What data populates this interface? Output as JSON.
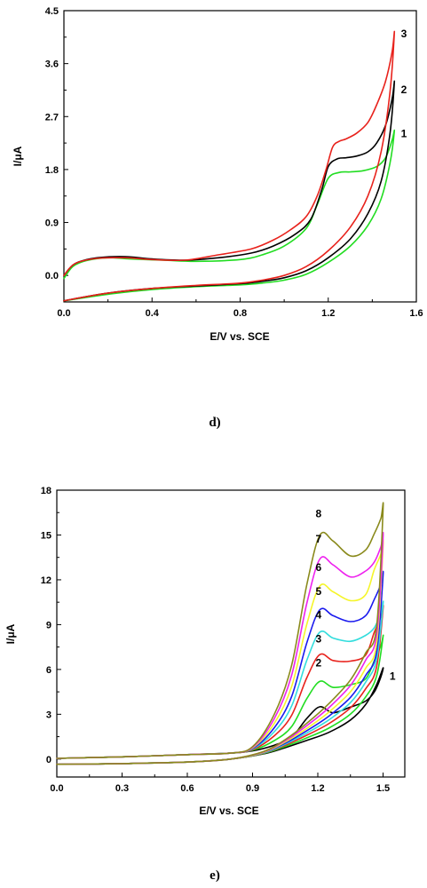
{
  "chart_data": [
    {
      "panel": "d)",
      "type": "line",
      "xlabel": "E/V vs. SCE",
      "ylabel": "I/μA",
      "xlim": [
        0.0,
        1.6
      ],
      "ylim": [
        -0.45,
        4.5
      ],
      "xticks": [
        "0.0",
        "0.4",
        "0.8",
        "1.2",
        "1.6"
      ],
      "yticks": [
        "0.0",
        "0.9",
        "1.8",
        "2.7",
        "3.6",
        "4.5"
      ],
      "grid": false,
      "series": [
        {
          "name": "1",
          "color": "#22dd22",
          "label_at": [
            1.53,
            2.35
          ],
          "forward": [
            [
              0.0,
              -0.43
            ],
            [
              0.2,
              -0.32
            ],
            [
              0.4,
              -0.24
            ],
            [
              0.6,
              -0.19
            ],
            [
              0.8,
              -0.16
            ],
            [
              0.9,
              -0.13
            ],
            [
              1.0,
              -0.08
            ],
            [
              1.1,
              0.02
            ],
            [
              1.2,
              0.22
            ],
            [
              1.3,
              0.5
            ],
            [
              1.38,
              0.85
            ],
            [
              1.44,
              1.3
            ],
            [
              1.48,
              1.9
            ],
            [
              1.5,
              2.45
            ]
          ],
          "reverse": [
            [
              1.5,
              2.45
            ],
            [
              1.49,
              2.3
            ],
            [
              1.46,
              2.0
            ],
            [
              1.42,
              1.85
            ],
            [
              1.36,
              1.78
            ],
            [
              1.3,
              1.76
            ],
            [
              1.25,
              1.75
            ],
            [
              1.2,
              1.65
            ],
            [
              1.15,
              1.2
            ],
            [
              1.1,
              0.8
            ],
            [
              1.0,
              0.5
            ],
            [
              0.9,
              0.35
            ],
            [
              0.8,
              0.27
            ],
            [
              0.6,
              0.24
            ],
            [
              0.45,
              0.26
            ],
            [
              0.3,
              0.28
            ],
            [
              0.2,
              0.3
            ],
            [
              0.1,
              0.25
            ],
            [
              0.04,
              0.15
            ],
            [
              0.0,
              -0.05
            ]
          ]
        },
        {
          "name": "2",
          "color": "#000000",
          "label_at": [
            1.53,
            3.1
          ],
          "forward": [
            [
              0.0,
              -0.43
            ],
            [
              0.2,
              -0.3
            ],
            [
              0.4,
              -0.22
            ],
            [
              0.6,
              -0.18
            ],
            [
              0.8,
              -0.14
            ],
            [
              0.9,
              -0.1
            ],
            [
              1.0,
              -0.04
            ],
            [
              1.1,
              0.08
            ],
            [
              1.2,
              0.3
            ],
            [
              1.3,
              0.62
            ],
            [
              1.38,
              1.05
            ],
            [
              1.44,
              1.6
            ],
            [
              1.48,
              2.4
            ],
            [
              1.5,
              3.28
            ]
          ],
          "reverse": [
            [
              1.5,
              3.28
            ],
            [
              1.49,
              3.0
            ],
            [
              1.46,
              2.55
            ],
            [
              1.42,
              2.25
            ],
            [
              1.38,
              2.1
            ],
            [
              1.33,
              2.03
            ],
            [
              1.28,
              2.0
            ],
            [
              1.24,
              1.98
            ],
            [
              1.2,
              1.85
            ],
            [
              1.17,
              1.45
            ],
            [
              1.12,
              0.95
            ],
            [
              1.05,
              0.7
            ],
            [
              0.95,
              0.5
            ],
            [
              0.85,
              0.38
            ],
            [
              0.7,
              0.3
            ],
            [
              0.55,
              0.26
            ],
            [
              0.4,
              0.28
            ],
            [
              0.28,
              0.32
            ],
            [
              0.15,
              0.3
            ],
            [
              0.05,
              0.2
            ],
            [
              0.0,
              0.0
            ]
          ]
        },
        {
          "name": "3",
          "color": "#e8221c",
          "label_at": [
            1.53,
            4.05
          ],
          "forward": [
            [
              0.0,
              -0.43
            ],
            [
              0.2,
              -0.3
            ],
            [
              0.4,
              -0.22
            ],
            [
              0.6,
              -0.17
            ],
            [
              0.8,
              -0.13
            ],
            [
              0.9,
              -0.08
            ],
            [
              1.0,
              0.0
            ],
            [
              1.1,
              0.15
            ],
            [
              1.2,
              0.42
            ],
            [
              1.3,
              0.82
            ],
            [
              1.38,
              1.35
            ],
            [
              1.44,
              2.1
            ],
            [
              1.48,
              3.1
            ],
            [
              1.5,
              4.12
            ]
          ],
          "reverse": [
            [
              1.5,
              4.12
            ],
            [
              1.49,
              3.8
            ],
            [
              1.46,
              3.3
            ],
            [
              1.42,
              2.9
            ],
            [
              1.38,
              2.6
            ],
            [
              1.33,
              2.42
            ],
            [
              1.28,
              2.32
            ],
            [
              1.25,
              2.28
            ],
            [
              1.22,
              2.18
            ],
            [
              1.19,
              1.8
            ],
            [
              1.15,
              1.35
            ],
            [
              1.1,
              1.0
            ],
            [
              1.03,
              0.78
            ],
            [
              0.95,
              0.6
            ],
            [
              0.85,
              0.45
            ],
            [
              0.7,
              0.35
            ],
            [
              0.55,
              0.26
            ],
            [
              0.4,
              0.27
            ],
            [
              0.28,
              0.3
            ],
            [
              0.15,
              0.29
            ],
            [
              0.05,
              0.2
            ],
            [
              0.0,
              0.0
            ]
          ]
        }
      ]
    },
    {
      "panel": "e)",
      "type": "line",
      "xlabel": "E/V vs. SCE",
      "ylabel": "I/μA",
      "xlim": [
        0.0,
        1.6
      ],
      "ylim": [
        -1.2,
        18
      ],
      "xticks": [
        "0.0",
        "0.3",
        "0.6",
        "0.9",
        "1.2",
        "1.5"
      ],
      "yticks": [
        "0",
        "3",
        "6",
        "9",
        "12",
        "15",
        "18"
      ],
      "grid": false,
      "peaks": [
        3.5,
        5.2,
        7.0,
        8.5,
        10.0,
        11.6,
        13.4,
        15.0
      ],
      "vertex": [
        6.1,
        8.2,
        10.1,
        10.4,
        12.3,
        14.3,
        14.8,
        16.7
      ],
      "series": [
        {
          "name": "1",
          "color": "#000000",
          "label_at": [
            1.53,
            5.3
          ]
        },
        {
          "name": "2",
          "color": "#22dd22",
          "label_at": [
            1.19,
            6.2
          ]
        },
        {
          "name": "3",
          "color": "#e8221c",
          "label_at": [
            1.19,
            7.8
          ]
        },
        {
          "name": "4",
          "color": "#33dddd",
          "label_at": [
            1.19,
            9.4
          ]
        },
        {
          "name": "5",
          "color": "#1a1aee",
          "label_at": [
            1.19,
            11.0
          ]
        },
        {
          "name": "6",
          "color": "#f5f52a",
          "label_at": [
            1.19,
            12.6
          ]
        },
        {
          "name": "7",
          "color": "#ee22ee",
          "label_at": [
            1.19,
            14.5
          ]
        },
        {
          "name": "8",
          "color": "#8a8a1c",
          "label_at": [
            1.19,
            16.2
          ]
        }
      ]
    }
  ]
}
